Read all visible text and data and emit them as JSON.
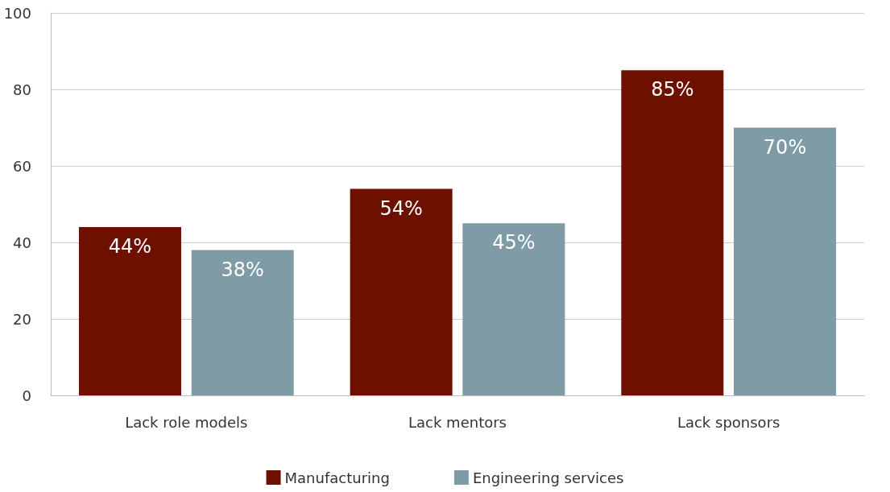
{
  "chart_data": {
    "type": "bar",
    "categories": [
      "Lack role models",
      "Lack mentors",
      "Lack sponsors"
    ],
    "series": [
      {
        "name": "Manufacturing",
        "color": "#6e1000",
        "values": [
          44,
          54,
          85
        ],
        "value_labels": [
          "44%",
          "54%",
          "85%"
        ]
      },
      {
        "name": "Engineering services",
        "color": "#7f9ca6",
        "values": [
          38,
          45,
          70
        ],
        "value_labels": [
          "38%",
          "45%",
          "70%"
        ]
      }
    ],
    "ylim": [
      0,
      100
    ],
    "yticks": [
      0,
      20,
      40,
      60,
      80,
      100
    ],
    "grid": "y",
    "legend": "bottom"
  }
}
